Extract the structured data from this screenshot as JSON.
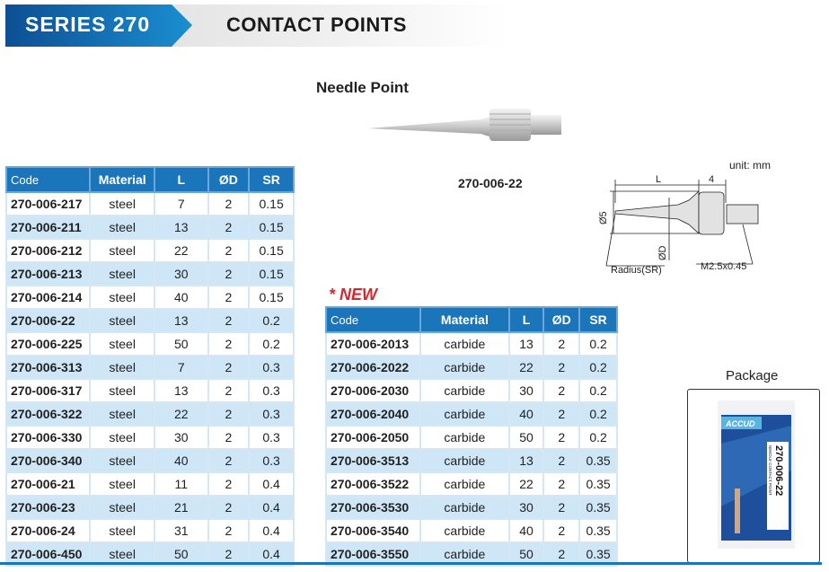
{
  "header": {
    "series": "SERIES 270",
    "title": "CONTACT POINTS"
  },
  "product": {
    "name": "Needle Point",
    "code": "270-006-22"
  },
  "drawing": {
    "unit": "unit: mm",
    "dim_l": "L",
    "dim_4": "4",
    "dim_d5": "Ø5",
    "dim_d": "ØD",
    "radius": "Radius(SR)",
    "thread": "M2.5x0.45"
  },
  "columns": [
    "Code",
    "Material",
    "L",
    "ØD",
    "SR"
  ],
  "steel_table": [
    [
      "270-006-217",
      "steel",
      "7",
      "2",
      "0.15"
    ],
    [
      "270-006-211",
      "steel",
      "13",
      "2",
      "0.15"
    ],
    [
      "270-006-212",
      "steel",
      "22",
      "2",
      "0.15"
    ],
    [
      "270-006-213",
      "steel",
      "30",
      "2",
      "0.15"
    ],
    [
      "270-006-214",
      "steel",
      "40",
      "2",
      "0.15"
    ],
    [
      "270-006-22",
      "steel",
      "13",
      "2",
      "0.2"
    ],
    [
      "270-006-225",
      "steel",
      "50",
      "2",
      "0.2"
    ],
    [
      "270-006-313",
      "steel",
      "7",
      "2",
      "0.3"
    ],
    [
      "270-006-317",
      "steel",
      "13",
      "2",
      "0.3"
    ],
    [
      "270-006-322",
      "steel",
      "22",
      "2",
      "0.3"
    ],
    [
      "270-006-330",
      "steel",
      "30",
      "2",
      "0.3"
    ],
    [
      "270-006-340",
      "steel",
      "40",
      "2",
      "0.3"
    ],
    [
      "270-006-21",
      "steel",
      "11",
      "2",
      "0.4"
    ],
    [
      "270-006-23",
      "steel",
      "21",
      "2",
      "0.4"
    ],
    [
      "270-006-24",
      "steel",
      "31",
      "2",
      "0.4"
    ],
    [
      "270-006-450",
      "steel",
      "50",
      "2",
      "0.4"
    ]
  ],
  "new_label": "* NEW",
  "carbide_table": [
    [
      "270-006-2013",
      "carbide",
      "13",
      "2",
      "0.2"
    ],
    [
      "270-006-2022",
      "carbide",
      "22",
      "2",
      "0.2"
    ],
    [
      "270-006-2030",
      "carbide",
      "30",
      "2",
      "0.2"
    ],
    [
      "270-006-2040",
      "carbide",
      "40",
      "2",
      "0.2"
    ],
    [
      "270-006-2050",
      "carbide",
      "50",
      "2",
      "0.2"
    ],
    [
      "270-006-3513",
      "carbide",
      "13",
      "2",
      "0.35"
    ],
    [
      "270-006-3522",
      "carbide",
      "22",
      "2",
      "0.35"
    ],
    [
      "270-006-3530",
      "carbide",
      "30",
      "2",
      "0.35"
    ],
    [
      "270-006-3540",
      "carbide",
      "40",
      "2",
      "0.35"
    ],
    [
      "270-006-3550",
      "carbide",
      "50",
      "2",
      "0.35"
    ]
  ],
  "package": {
    "title": "Package",
    "brand": "ACCUD",
    "label_code": "270-006-22",
    "label_desc": "NEEDLE CONTACT POINT"
  },
  "colors": {
    "brand_blue": "#1b75bb",
    "row_alt": "#cfe6f7",
    "new_red": "#d8262e"
  }
}
